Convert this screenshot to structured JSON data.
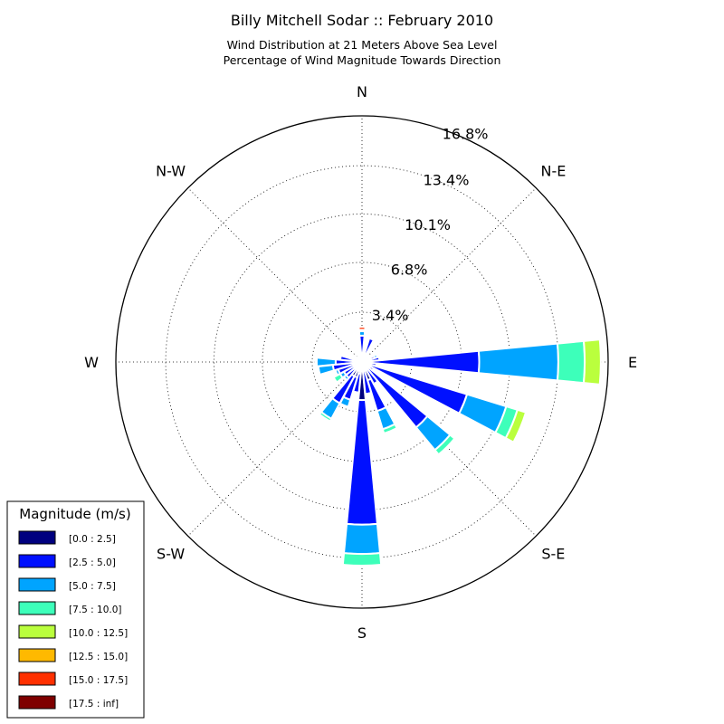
{
  "chart_data": {
    "type": "windrose",
    "title": "Billy Mitchell Sodar :: February 2010",
    "subtitle_lines": [
      "Wind Distribution at 21 Meters Above Sea Level",
      "Percentage of Wind Magnitude Towards Direction"
    ],
    "directions": [
      {
        "label": "E",
        "angle_deg": 0
      },
      {
        "label": "N-E",
        "angle_deg": 45
      },
      {
        "label": "N",
        "angle_deg": 90
      },
      {
        "label": "N-W",
        "angle_deg": 135
      },
      {
        "label": "W",
        "angle_deg": 180
      },
      {
        "label": "S-W",
        "angle_deg": 225
      },
      {
        "label": "S",
        "angle_deg": 270
      },
      {
        "label": "S-E",
        "angle_deg": 315
      }
    ],
    "radial_ticks": [
      {
        "value": 3.4,
        "label": "3.4%"
      },
      {
        "value": 6.8,
        "label": "6.8%"
      },
      {
        "value": 10.1,
        "label": "10.1%"
      },
      {
        "value": 13.4,
        "label": "13.4%"
      },
      {
        "value": 16.8,
        "label": "16.8%"
      }
    ],
    "r_max": 16.8,
    "unit": "%",
    "legend": {
      "title": "Magnitude (m/s)",
      "placement": "lower-left",
      "entries": [
        {
          "label": "[0.0 : 2.5]",
          "color": "#00007f"
        },
        {
          "label": "[2.5 : 5.0]",
          "color": "#0010ff"
        },
        {
          "label": "[5.0 : 7.5]",
          "color": "#00a4ff"
        },
        {
          "label": "[7.5 : 10.0]",
          "color": "#3dffba"
        },
        {
          "label": "[10.0 : 12.5]",
          "color": "#baff3d"
        },
        {
          "label": "[12.5 : 15.0]",
          "color": "#ffb900"
        },
        {
          "label": "[15.0 : 17.5]",
          "color": "#ff3000"
        },
        {
          "label": "[17.5 : inf]",
          "color": "#7f0000"
        }
      ]
    },
    "sectors": [
      {
        "angle_deg": 0,
        "values": [
          0.2,
          7.8,
          5.4,
          1.8,
          1.1,
          0,
          0,
          0
        ]
      },
      {
        "angle_deg": 11.25,
        "values": [
          0.2,
          1.0,
          0,
          0,
          0,
          0,
          0,
          0
        ]
      },
      {
        "angle_deg": 22.5,
        "values": [
          0.2,
          0.7,
          0.2,
          0,
          0,
          0,
          0,
          0
        ]
      },
      {
        "angle_deg": 33.75,
        "values": [
          0.2,
          0.4,
          0.1,
          0,
          0,
          0,
          0,
          0
        ]
      },
      {
        "angle_deg": 45,
        "values": [
          0.2,
          0.3,
          0.1,
          0,
          0,
          0,
          0,
          0
        ]
      },
      {
        "angle_deg": 56.25,
        "values": [
          0.2,
          0.3,
          0.1,
          0,
          0,
          0,
          0,
          0
        ]
      },
      {
        "angle_deg": 67.5,
        "values": [
          0.3,
          1.4,
          0.1,
          0,
          0,
          0,
          0,
          0
        ]
      },
      {
        "angle_deg": 78.75,
        "values": [
          0.2,
          0.3,
          0.1,
          0,
          0,
          0,
          0,
          0
        ]
      },
      {
        "angle_deg": 90,
        "values": [
          0.2,
          1.6,
          0.3,
          0.1,
          0,
          0,
          0.2,
          0
        ]
      },
      {
        "angle_deg": 101.25,
        "values": [
          0.1,
          0.3,
          0,
          0,
          0,
          0,
          0,
          0
        ]
      },
      {
        "angle_deg": 112.5,
        "values": [
          0.1,
          0.2,
          0,
          0,
          0,
          0,
          0,
          0
        ]
      },
      {
        "angle_deg": 123.75,
        "values": [
          0.1,
          0.2,
          0.1,
          0,
          0,
          0,
          0,
          0
        ]
      },
      {
        "angle_deg": 135,
        "values": [
          0.1,
          0.1,
          0.1,
          0,
          0,
          0,
          0,
          0
        ]
      },
      {
        "angle_deg": 146.25,
        "values": [
          0.2,
          0.3,
          0.2,
          0.1,
          0,
          0,
          0,
          0
        ]
      },
      {
        "angle_deg": 157.5,
        "values": [
          0.3,
          0.4,
          0.1,
          0,
          0,
          0,
          0,
          0
        ]
      },
      {
        "angle_deg": 168.75,
        "values": [
          0.4,
          1.1,
          0.1,
          0,
          0,
          0,
          0,
          0
        ]
      },
      {
        "angle_deg": 180,
        "values": [
          0.3,
          1.5,
          1.3,
          0.1,
          0,
          0,
          0,
          0
        ]
      },
      {
        "angle_deg": 191.25,
        "values": [
          0.5,
          1.5,
          1.0,
          0.1,
          0,
          0,
          0,
          0
        ]
      },
      {
        "angle_deg": 202.5,
        "values": [
          0.6,
          1.1,
          0.2,
          0,
          0,
          0,
          0,
          0
        ]
      },
      {
        "angle_deg": 213.75,
        "values": [
          0.6,
          0.8,
          0.3,
          0.5,
          0,
          0,
          0,
          0
        ]
      },
      {
        "angle_deg": 225,
        "values": [
          0.7,
          0.7,
          0.2,
          0,
          0,
          0,
          0,
          0
        ]
      },
      {
        "angle_deg": 236.25,
        "values": [
          1.1,
          2.1,
          1.2,
          0.2,
          0,
          0,
          0,
          0
        ]
      },
      {
        "angle_deg": 247.5,
        "values": [
          1.1,
          1.6,
          0.5,
          0,
          0,
          0,
          0,
          0
        ]
      },
      {
        "angle_deg": 258.75,
        "values": [
          0.8,
          1.3,
          0.1,
          0,
          0,
          0,
          0,
          0
        ]
      },
      {
        "angle_deg": 270,
        "values": [
          2.6,
          8.5,
          2.0,
          0.8,
          0,
          0,
          0,
          0
        ]
      },
      {
        "angle_deg": 281.25,
        "values": [
          0.6,
          1.6,
          0.1,
          0,
          0,
          0,
          0,
          0
        ]
      },
      {
        "angle_deg": 292.5,
        "values": [
          1.3,
          2.2,
          1.3,
          0.3,
          0,
          0,
          0,
          0
        ]
      },
      {
        "angle_deg": 303.75,
        "values": [
          0.4,
          1.3,
          0.1,
          0,
          0,
          0,
          0,
          0
        ]
      },
      {
        "angle_deg": 315,
        "values": [
          0.4,
          5.4,
          2.0,
          0.4,
          0,
          0,
          0,
          0
        ]
      },
      {
        "angle_deg": 326.25,
        "values": [
          0.3,
          0.6,
          0.1,
          0,
          0,
          0,
          0,
          0
        ]
      },
      {
        "angle_deg": 337.5,
        "values": [
          0.5,
          7.0,
          2.8,
          0.8,
          0.6,
          0,
          0,
          0
        ]
      },
      {
        "angle_deg": 348.75,
        "values": [
          0.4,
          0.6,
          0.1,
          0,
          0,
          0,
          0,
          0
        ]
      }
    ]
  }
}
